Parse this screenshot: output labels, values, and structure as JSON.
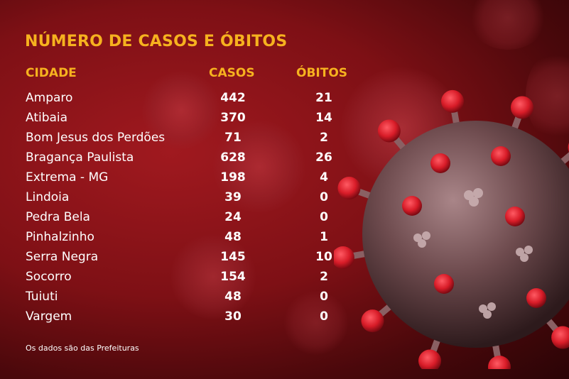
{
  "title": "NÚMERO DE CASOS E ÓBITOS",
  "headers": {
    "city": "CIDADE",
    "cases": "CASOS",
    "deaths": "ÓBITOS"
  },
  "rows": [
    {
      "city": "Amparo",
      "cases": "442",
      "deaths": "21"
    },
    {
      "city": "Atibaia",
      "cases": "370",
      "deaths": "14"
    },
    {
      "city": "Bom Jesus dos Perdões",
      "cases": "71",
      "deaths": "2"
    },
    {
      "city": "Bragança Paulista",
      "cases": "628",
      "deaths": "26"
    },
    {
      "city": "Extrema - MG",
      "cases": "198",
      "deaths": "4"
    },
    {
      "city": "Lindoia",
      "cases": "39",
      "deaths": "0"
    },
    {
      "city": "Pedra Bela",
      "cases": "24",
      "deaths": "0"
    },
    {
      "city": "Pinhalzinho",
      "cases": "48",
      "deaths": "1"
    },
    {
      "city": "Serra Negra",
      "cases": "145",
      "deaths": "10"
    },
    {
      "city": "Socorro",
      "cases": "154",
      "deaths": "2"
    },
    {
      "city": "Tuiuti",
      "cases": "48",
      "deaths": "0"
    },
    {
      "city": "Vargem",
      "cases": "30",
      "deaths": "0"
    }
  ],
  "footnote": "Os dados são das Prefeituras",
  "colors": {
    "accent": "#f6b21f",
    "background": "#7e1015",
    "text": "#ffffff",
    "virus_body": "#6b4a4c",
    "spike_tip": "#d81c28"
  },
  "icons": {
    "illustration": "coronavirus-illustration-icon"
  }
}
